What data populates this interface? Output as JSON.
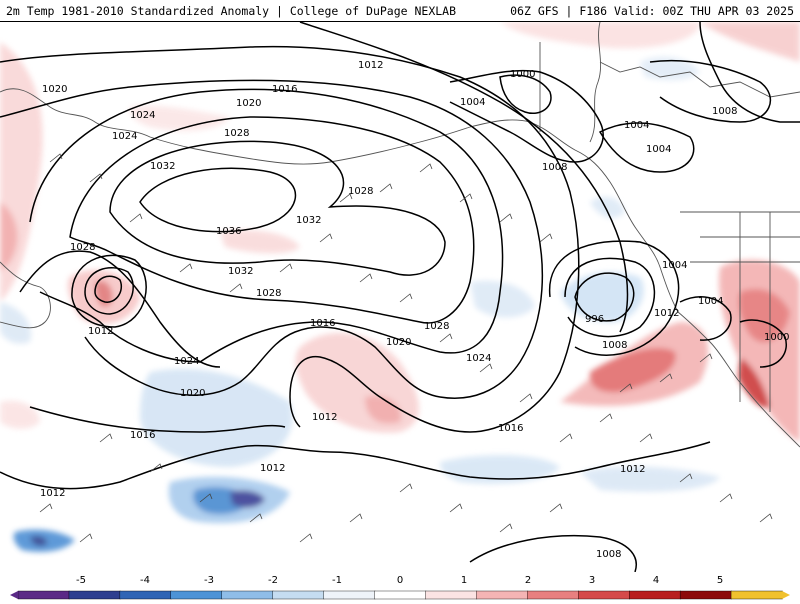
{
  "header": {
    "title_left": "2m Temp 1981-2010 Standardized Anomaly | College of DuPage NEXLAB",
    "title_right": "06Z GFS | F186 Valid: 00Z THU APR 03 2025"
  },
  "map": {
    "isobar_labels": [
      "1012",
      "1020",
      "1016",
      "1020",
      "1024",
      "1024",
      "1028",
      "1000",
      "1004",
      "1008",
      "1004",
      "1004",
      "1032",
      "1028",
      "1032",
      "1036",
      "1032",
      "1028",
      "1008",
      "1004",
      "1028",
      "996",
      "1028",
      "1012",
      "1024",
      "1016",
      "1020",
      "1004",
      "1012",
      "1008",
      "1024",
      "1020",
      "1000",
      "1016",
      "1012",
      "1016",
      "1012",
      "1012",
      "1012",
      "1008"
    ],
    "low_centers": [
      "996",
      "1000",
      "1000"
    ],
    "high_center": "1036"
  },
  "colorbar": {
    "labels": [
      "-5",
      "-4",
      "-3",
      "-2",
      "-1",
      "0",
      "1",
      "2",
      "3",
      "4",
      "5"
    ],
    "colors": [
      "#5b2a86",
      "#2e3f8f",
      "#2f65b5",
      "#4d93d6",
      "#8fbde8",
      "#c5dcf1",
      "#eef3f9",
      "#ffffff",
      "#fbe3e3",
      "#f4b4b4",
      "#e88080",
      "#d54a4a",
      "#b81e1e",
      "#8c0a0a",
      "#f1c12e"
    ]
  }
}
